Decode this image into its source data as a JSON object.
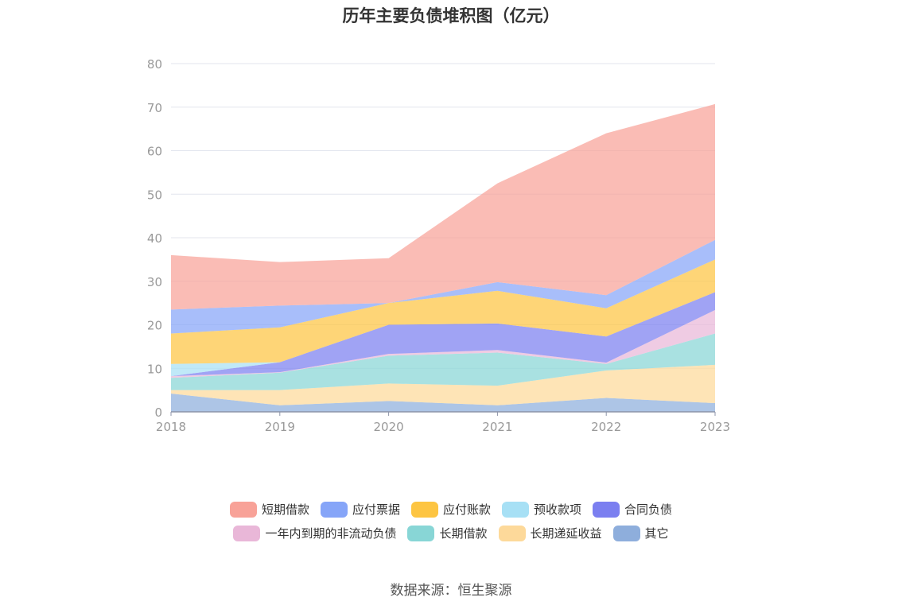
{
  "chart_data": {
    "type": "area",
    "stacked": true,
    "title": "历年主要负债堆积图（亿元）",
    "x": [
      "2018",
      "2019",
      "2020",
      "2021",
      "2022",
      "2023"
    ],
    "ylim": [
      0,
      80
    ],
    "yticks": [
      0,
      10,
      20,
      30,
      40,
      50,
      60,
      70,
      80
    ],
    "grid": true,
    "legend_position": "bottom",
    "series": [
      {
        "name": "其它",
        "color": "#8eaedc",
        "values": [
          4.2,
          1.5,
          2.5,
          1.5,
          3.2,
          2.0
        ]
      },
      {
        "name": "长期递延收益",
        "color": "#fdd99a",
        "values": [
          0.8,
          3.5,
          4.0,
          4.5,
          6.3,
          8.8
        ]
      },
      {
        "name": "长期借款",
        "color": "#88d6d6",
        "values": [
          2.8,
          4.0,
          6.4,
          7.6,
          1.5,
          7.2
        ]
      },
      {
        "name": "一年内到期的非流动负债",
        "color": "#e9b7d8",
        "values": [
          0.4,
          0.1,
          0.4,
          0.6,
          0.3,
          5.4
        ]
      },
      {
        "name": "合同负债",
        "color": "#7b7ff0",
        "values": [
          0.0,
          2.3,
          6.7,
          6.1,
          6.0,
          4.1
        ]
      },
      {
        "name": "预收款项",
        "color": "#a7e0f5",
        "values": [
          2.8,
          0.0,
          0.0,
          0.0,
          0.0,
          0.0
        ]
      },
      {
        "name": "应付账款",
        "color": "#fdc542",
        "values": [
          7.0,
          8.0,
          5.0,
          7.5,
          6.5,
          7.5
        ]
      },
      {
        "name": "应付票据",
        "color": "#86a5f8",
        "values": [
          5.5,
          5.0,
          0.0,
          2.0,
          3.0,
          4.5
        ]
      },
      {
        "name": "短期借款",
        "color": "#f8a298",
        "values": [
          12.5,
          10.0,
          10.3,
          22.7,
          37.2,
          31.2
        ]
      }
    ],
    "legend_order": [
      "短期借款",
      "应付票据",
      "应付账款",
      "预收款项",
      "合同负债",
      "一年内到期的非流动负债",
      "长期借款",
      "长期递延收益",
      "其它"
    ]
  },
  "source": "数据来源：恒生聚源"
}
